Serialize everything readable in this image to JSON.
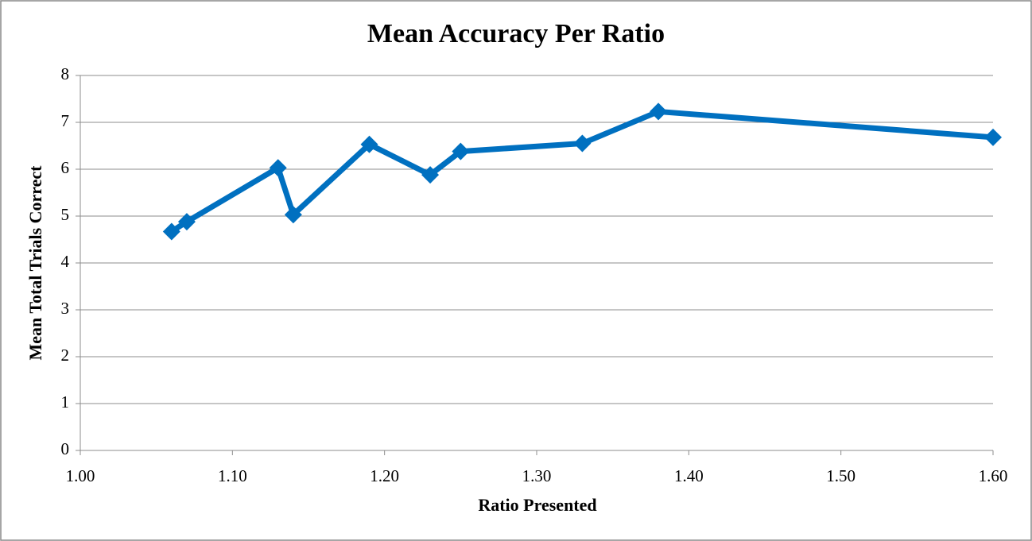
{
  "chart_data": {
    "type": "line",
    "title": "Mean Accuracy Per Ratio",
    "x_label": "Ratio Presented",
    "y_label": "Mean Total Trials Correct",
    "x": [
      1.06,
      1.07,
      1.13,
      1.14,
      1.19,
      1.23,
      1.25,
      1.33,
      1.38,
      1.6
    ],
    "values": [
      4.67,
      4.88,
      6.03,
      5.03,
      6.53,
      5.88,
      6.38,
      6.55,
      7.23,
      6.68
    ],
    "color": "#0070c0",
    "xlim": [
      1.0,
      1.6
    ],
    "xticks": [
      {
        "value": 1.0,
        "label": "1.00"
      },
      {
        "value": 1.1,
        "label": "1.10"
      },
      {
        "value": 1.2,
        "label": "1.20"
      },
      {
        "value": 1.3,
        "label": "1.30"
      },
      {
        "value": 1.4,
        "label": "1.40"
      },
      {
        "value": 1.5,
        "label": "1.50"
      },
      {
        "value": 1.6,
        "label": "1.60"
      }
    ],
    "ylim": [
      0,
      8
    ],
    "yticks": [
      0,
      1,
      2,
      3,
      4,
      5,
      6,
      7,
      8
    ],
    "grid": true
  }
}
